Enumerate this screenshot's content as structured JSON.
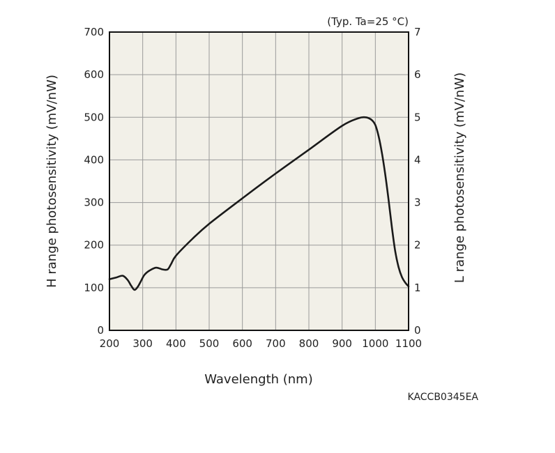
{
  "chart_data": {
    "type": "line",
    "title": "",
    "note": "(Typ. Ta=25 °C)",
    "xlabel": "Wavelength (nm)",
    "ylabel_left": "H range photosensitivity (mV/nW)",
    "ylabel_right": "L range photosensitivity (mV/nW)",
    "xlim": [
      200,
      1100
    ],
    "ylim_left": [
      0,
      700
    ],
    "ylim_right": [
      0,
      7
    ],
    "x_ticks": [
      "200",
      "300",
      "400",
      "500",
      "600",
      "700",
      "800",
      "900",
      "1000",
      "1100"
    ],
    "y_ticks_left": [
      "0",
      "100",
      "200",
      "300",
      "400",
      "500",
      "600",
      "700"
    ],
    "y_ticks_right": [
      "0",
      "1",
      "2",
      "3",
      "4",
      "5",
      "6",
      "7"
    ],
    "grid": true,
    "colors": {
      "plot_bg": "#f2f0e8",
      "grid": "#9a9a9a",
      "line": "#1a1a1a",
      "frame": "#111111"
    },
    "series": [
      {
        "x": [
          200,
          220,
          240,
          255,
          265,
          275,
          285,
          295,
          305,
          320,
          340,
          360,
          375,
          385,
          400,
          450,
          500,
          600,
          700,
          800,
          900,
          950,
          970,
          980,
          990,
          1000,
          1010,
          1020,
          1030,
          1040,
          1050,
          1060,
          1070,
          1080,
          1090,
          1100
        ],
        "y": [
          120,
          124,
          128,
          118,
          105,
          95,
          102,
          116,
          130,
          140,
          147,
          143,
          143,
          155,
          175,
          215,
          250,
          310,
          368,
          424,
          480,
          498,
          500,
          498,
          493,
          482,
          455,
          415,
          365,
          305,
          240,
          185,
          148,
          125,
          112,
          103
        ]
      }
    ]
  },
  "figure_code": "KACCB0345EA"
}
